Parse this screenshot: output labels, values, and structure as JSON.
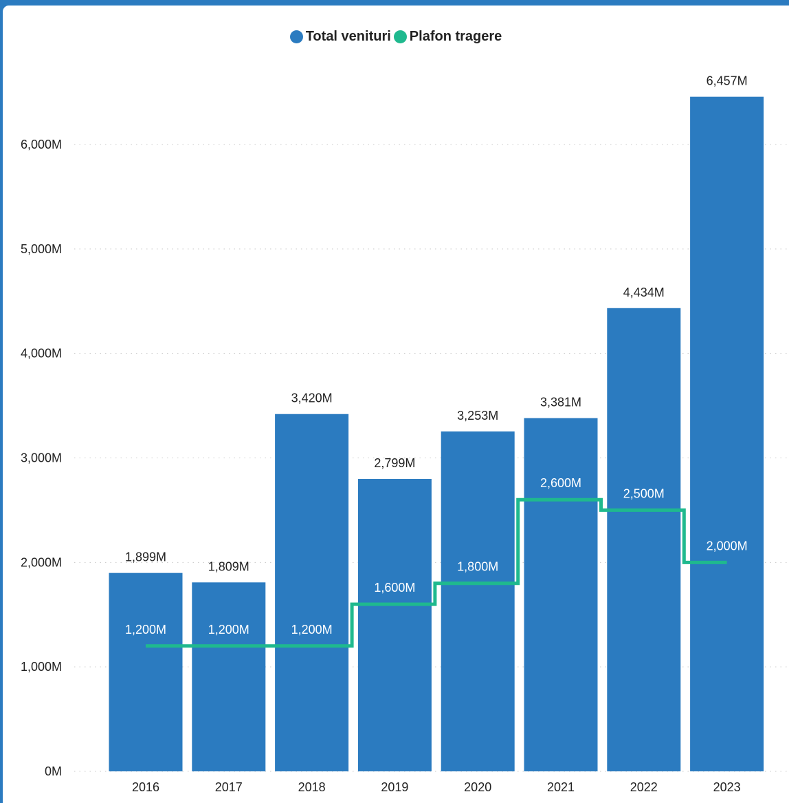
{
  "chart_data": {
    "type": "bar",
    "categories": [
      "2016",
      "2017",
      "2018",
      "2019",
      "2020",
      "2021",
      "2022",
      "2023"
    ],
    "series": [
      {
        "name": "Total venituri",
        "type": "bar",
        "color": "#2b7bc0",
        "values": [
          1899,
          1809,
          3420,
          2799,
          3253,
          3381,
          4434,
          6457
        ],
        "labels": [
          "1,899M",
          "1,809M",
          "3,420M",
          "2,799M",
          "3,253M",
          "3,381M",
          "4,434M",
          "6,457M"
        ]
      },
      {
        "name": "Plafon tragere",
        "type": "step-line",
        "color": "#1fb98e",
        "values": [
          1200,
          1200,
          1200,
          1600,
          1800,
          2600,
          2500,
          2000
        ],
        "labels": [
          "1,200M",
          "1,200M",
          "1,200M",
          "1,600M",
          "1,800M",
          "2,600M",
          "2,500M",
          "2,000M"
        ]
      }
    ],
    "y_ticks": [
      0,
      1000,
      2000,
      3000,
      4000,
      5000,
      6000
    ],
    "y_tick_labels": [
      "0M",
      "1,000M",
      "2,000M",
      "3,000M",
      "4,000M",
      "5,000M",
      "6,000M"
    ],
    "ylim": [
      0,
      6800
    ],
    "grid": true,
    "legend_position": "top-center"
  }
}
